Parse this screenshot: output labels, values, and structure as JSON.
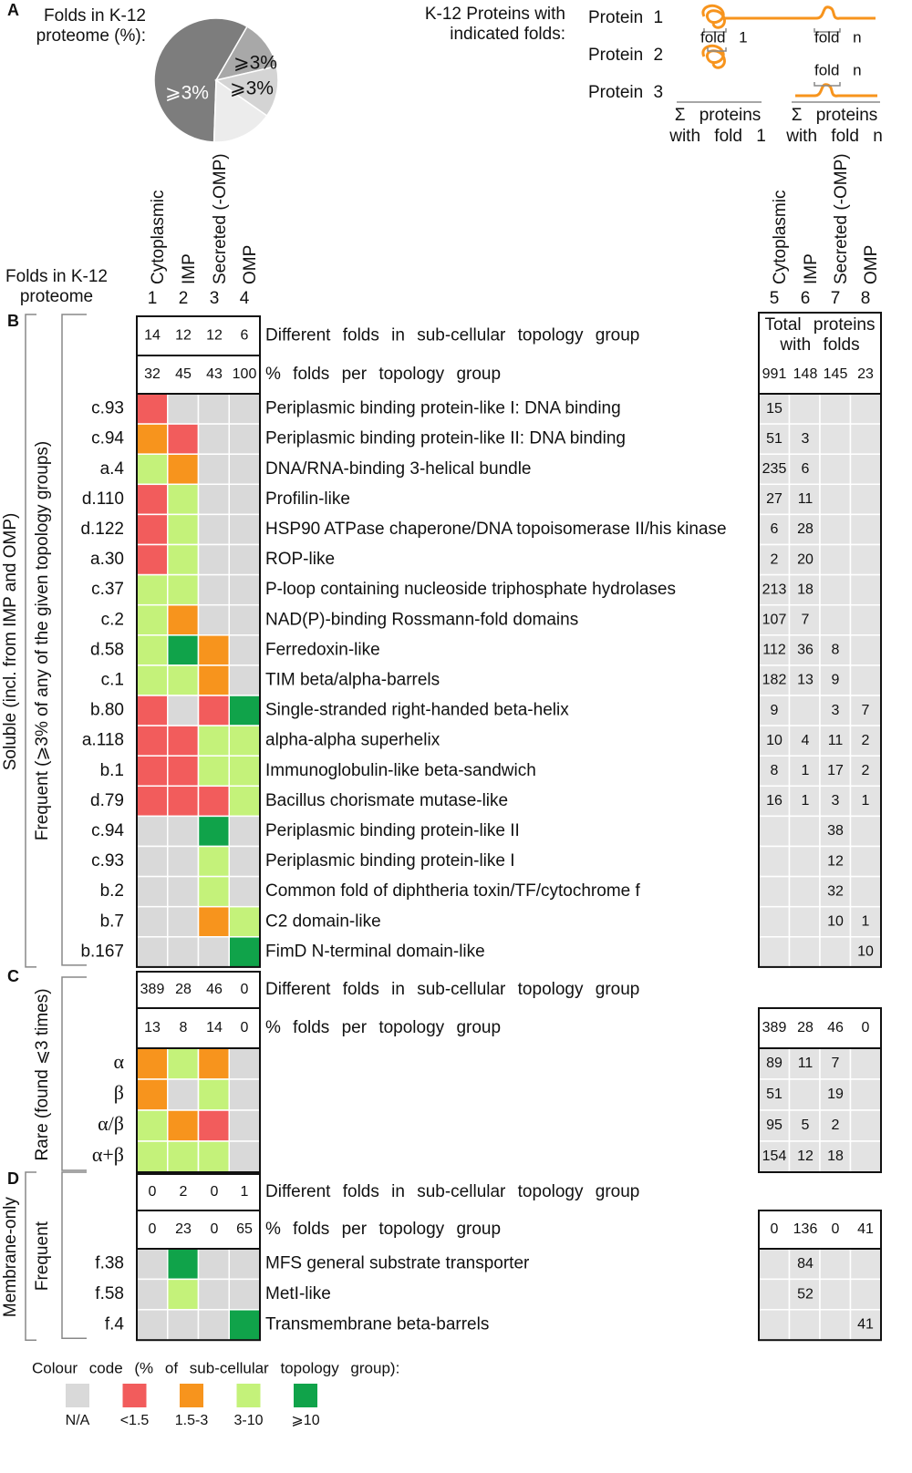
{
  "panel_a": {
    "label": "A",
    "pie_title": [
      "Folds in K-12",
      "proteome (%):"
    ],
    "pie_labels": [
      "⩾3%",
      "⩾3%",
      "⩾3%"
    ],
    "proteins_title": [
      "K-12 Proteins with",
      "indicated folds:"
    ],
    "proteins": [
      "Protein 1",
      "Protein 2",
      "Protein 3"
    ],
    "fold_labels": [
      "fold 1",
      "fold n",
      "fold n"
    ],
    "sums": [
      [
        "Σ proteins",
        "with fold 1"
      ],
      [
        "Σ proteins",
        "with fold n"
      ]
    ]
  },
  "header": {
    "row_label": [
      "Folds in K-12",
      "proteome"
    ],
    "columns": [
      "Cytoplasmic",
      "IMP",
      "Secreted (-OMP)",
      "OMP"
    ],
    "left_numbers": [
      "1",
      "2",
      "3",
      "4"
    ],
    "right_numbers": [
      "5",
      "6",
      "7",
      "8"
    ]
  },
  "sections": [
    {
      "label": "B",
      "side_outer": "Soluble (incl. from IMP and OMP)",
      "side_inner": "Frequent (⩾3% of any of the given topology groups)",
      "different_folds": {
        "label": "Different folds in sub-cellular topology group",
        "values": [
          14,
          12,
          12,
          6
        ]
      },
      "percent": {
        "label": "% folds per topology group",
        "values": [
          32,
          45,
          43,
          100
        ]
      },
      "total_label": [
        "Total proteins",
        "with folds"
      ],
      "totals": [
        991,
        148,
        145,
        23
      ],
      "rows": [
        {
          "code": "c.93",
          "colors": [
            "<1.5",
            "N/A",
            "N/A",
            "N/A"
          ],
          "description": "Periplasmic binding protein-like I: DNA binding",
          "counts": [
            15,
            null,
            null,
            null
          ]
        },
        {
          "code": "c.94",
          "colors": [
            "1.5-3",
            "<1.5",
            "N/A",
            "N/A"
          ],
          "description": "Periplasmic binding protein-like II: DNA binding",
          "counts": [
            51,
            3,
            null,
            null
          ]
        },
        {
          "code": "a.4",
          "colors": [
            "3-10",
            "1.5-3",
            "N/A",
            "N/A"
          ],
          "description": "DNA/RNA-binding 3-helical bundle",
          "counts": [
            235,
            6,
            null,
            null
          ]
        },
        {
          "code": "d.110",
          "colors": [
            "<1.5",
            "3-10",
            "N/A",
            "N/A"
          ],
          "description": "Profilin-like",
          "counts": [
            27,
            11,
            null,
            null
          ]
        },
        {
          "code": "d.122",
          "colors": [
            "<1.5",
            "3-10",
            "N/A",
            "N/A"
          ],
          "description": "HSP90 ATPase chaperone/DNA topoisomerase II/his kinase",
          "counts": [
            6,
            28,
            null,
            null
          ]
        },
        {
          "code": "a.30",
          "colors": [
            "<1.5",
            "3-10",
            "N/A",
            "N/A"
          ],
          "description": "ROP-like",
          "counts": [
            2,
            20,
            null,
            null
          ]
        },
        {
          "code": "c.37",
          "colors": [
            "3-10",
            "3-10",
            "N/A",
            "N/A"
          ],
          "description": "P-loop containing nucleoside triphosphate hydrolases",
          "counts": [
            213,
            18,
            null,
            null
          ]
        },
        {
          "code": "c.2",
          "colors": [
            "3-10",
            "1.5-3",
            "N/A",
            "N/A"
          ],
          "description": "NAD(P)-binding Rossmann-fold domains",
          "counts": [
            107,
            7,
            null,
            null
          ]
        },
        {
          "code": "d.58",
          "colors": [
            "3-10",
            "⩾10",
            "1.5-3",
            "N/A"
          ],
          "description": "Ferredoxin-like",
          "counts": [
            112,
            36,
            8,
            null
          ]
        },
        {
          "code": "c.1",
          "colors": [
            "3-10",
            "3-10",
            "1.5-3",
            "N/A"
          ],
          "description": "TIM beta/alpha-barrels",
          "counts": [
            182,
            13,
            9,
            null
          ]
        },
        {
          "code": "b.80",
          "colors": [
            "<1.5",
            "N/A",
            "<1.5",
            "⩾10"
          ],
          "description": "Single-stranded right-handed beta-helix",
          "counts": [
            9,
            null,
            3,
            7
          ]
        },
        {
          "code": "a.118",
          "colors": [
            "<1.5",
            "<1.5",
            "3-10",
            "3-10"
          ],
          "description": "alpha-alpha superhelix",
          "counts": [
            10,
            4,
            11,
            2
          ]
        },
        {
          "code": "b.1",
          "colors": [
            "<1.5",
            "<1.5",
            "3-10",
            "3-10"
          ],
          "description": "Immunoglobulin-like beta-sandwich",
          "counts": [
            8,
            1,
            17,
            2
          ]
        },
        {
          "code": "d.79",
          "colors": [
            "<1.5",
            "<1.5",
            "<1.5",
            "3-10"
          ],
          "description": "Bacillus chorismate mutase-like",
          "counts": [
            16,
            1,
            3,
            1
          ]
        },
        {
          "code": "c.94",
          "colors": [
            "N/A",
            "N/A",
            "⩾10",
            "N/A"
          ],
          "description": "Periplasmic binding protein-like II",
          "counts": [
            null,
            null,
            38,
            null
          ]
        },
        {
          "code": "c.93",
          "colors": [
            "N/A",
            "N/A",
            "3-10",
            "N/A"
          ],
          "description": "Periplasmic binding protein-like I",
          "counts": [
            null,
            null,
            12,
            null
          ]
        },
        {
          "code": "b.2",
          "colors": [
            "N/A",
            "N/A",
            "3-10",
            "N/A"
          ],
          "description": "Common fold of diphtheria toxin/TF/cytochrome f",
          "counts": [
            null,
            null,
            32,
            null
          ]
        },
        {
          "code": "b.7",
          "colors": [
            "N/A",
            "N/A",
            "1.5-3",
            "3-10"
          ],
          "description": "C2 domain-like",
          "counts": [
            null,
            null,
            10,
            1
          ]
        },
        {
          "code": "b.167",
          "colors": [
            "N/A",
            "N/A",
            "N/A",
            "⩾10"
          ],
          "description": "FimD N-terminal domain-like",
          "counts": [
            null,
            null,
            null,
            10
          ]
        }
      ]
    },
    {
      "label": "C",
      "side_inner": "Rare (found ⩽3 times)",
      "different_folds": {
        "label": "Different folds in sub-cellular topology group",
        "values": [
          389,
          28,
          46,
          0
        ]
      },
      "percent": {
        "label": "% folds per topology group",
        "values": [
          13,
          8,
          14,
          0
        ]
      },
      "totals": [
        389,
        28,
        46,
        0
      ],
      "rows": [
        {
          "code": "α",
          "colors": [
            "1.5-3",
            "3-10",
            "1.5-3",
            "N/A"
          ],
          "counts": [
            89,
            11,
            7,
            null
          ]
        },
        {
          "code": "β",
          "colors": [
            "1.5-3",
            "N/A",
            "3-10",
            "N/A"
          ],
          "counts": [
            51,
            null,
            19,
            null
          ]
        },
        {
          "code": "α/β",
          "colors": [
            "3-10",
            "1.5-3",
            "<1.5",
            "N/A"
          ],
          "counts": [
            95,
            5,
            2,
            null
          ]
        },
        {
          "code": "α+β",
          "colors": [
            "3-10",
            "3-10",
            "3-10",
            "N/A"
          ],
          "counts": [
            154,
            12,
            18,
            null
          ]
        }
      ]
    },
    {
      "label": "D",
      "side_outer": "Membrane-only",
      "side_inner": "Frequent",
      "different_folds": {
        "label": "Different folds in sub-cellular topology group",
        "values": [
          0,
          2,
          0,
          1
        ]
      },
      "percent": {
        "label": "% folds per topology group",
        "values": [
          0,
          23,
          0,
          65
        ]
      },
      "totals": [
        0,
        136,
        0,
        41
      ],
      "rows": [
        {
          "code": "f.38",
          "colors": [
            "N/A",
            "⩾10",
            "N/A",
            "N/A"
          ],
          "description": "MFS general substrate transporter",
          "counts": [
            null,
            84,
            null,
            null
          ]
        },
        {
          "code": "f.58",
          "colors": [
            "N/A",
            "3-10",
            "N/A",
            "N/A"
          ],
          "description": "MetI-like",
          "counts": [
            null,
            52,
            null,
            null
          ]
        },
        {
          "code": "f.4",
          "colors": [
            "N/A",
            "N/A",
            "N/A",
            "⩾10"
          ],
          "description": "Transmembrane beta-barrels",
          "counts": [
            null,
            null,
            null,
            41
          ]
        }
      ]
    }
  ],
  "legend": {
    "title": "Colour code (% of sub-cellular topology group):",
    "items": [
      {
        "label": "N/A",
        "color": "#d9d9d9"
      },
      {
        "label": "<1.5",
        "color": "#f25c5c"
      },
      {
        "label": "1.5-3",
        "color": "#f7941d"
      },
      {
        "label": "3-10",
        "color": "#c4f27a"
      },
      {
        "label": "⩾10",
        "color": "#10a34a"
      }
    ]
  }
}
